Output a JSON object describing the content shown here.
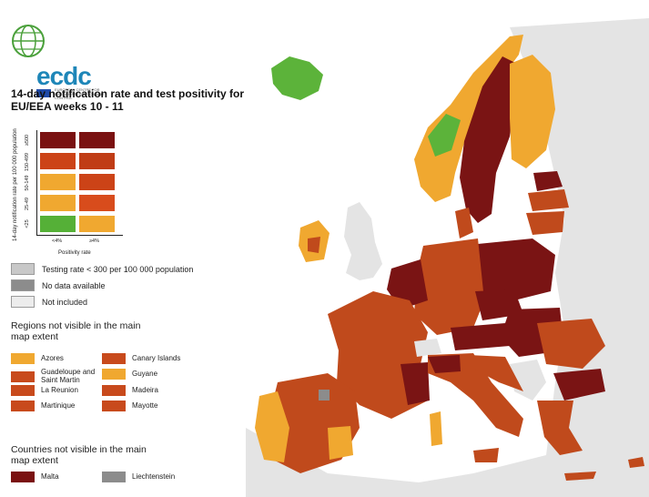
{
  "logo": {
    "wordmark": "ecdc",
    "tagline": "EUROPEAN CENTRE FOR DISEASE PREVENTION AND CONTROL"
  },
  "title": "14-day notification rate and test positivity for EU/EEA weeks 10 - 11",
  "matrix": {
    "y_axis_title": "14-day notification rate per 100 000 population",
    "y_categories": [
      "<25",
      "25-49",
      "50-149",
      "150-499",
      "≥500"
    ],
    "x_axis_title": "Positivity rate",
    "x_categories": [
      "<4%",
      "≥4%"
    ],
    "cells": [
      [
        "#55b037",
        "#f0a830"
      ],
      [
        "#f0a830",
        "#d84c1c"
      ],
      [
        "#f0a830",
        "#cc4317"
      ],
      [
        "#cc4317",
        "#c03c15"
      ],
      [
        "#7a1111",
        "#7a1111"
      ]
    ]
  },
  "status_legend": [
    {
      "label": "Testing rate < 300 per 100 000 population",
      "color": "#c8c8c8"
    },
    {
      "label": "No data available",
      "color": "#8c8c8c"
    },
    {
      "label": "Not included",
      "color": "#ececec"
    }
  ],
  "regions_title": "Regions not visible in the main map extent",
  "regions": [
    {
      "label": "Azores",
      "color": "#f0a830"
    },
    {
      "label": "Canary Islands",
      "color": "#c84a1c"
    },
    {
      "label": "Guadeloupe and Saint Martin",
      "color": "#c84a1c"
    },
    {
      "label": "Guyane",
      "color": "#f0a830"
    },
    {
      "label": "La Reunion",
      "color": "#c84a1c"
    },
    {
      "label": "Madeira",
      "color": "#c84a1c"
    },
    {
      "label": "Martinique",
      "color": "#c84a1c"
    },
    {
      "label": "Mayotte",
      "color": "#c84a1c"
    }
  ],
  "countries_title": "Countries not visible in the main map extent",
  "countries": [
    {
      "label": "Malta",
      "color": "#7a1111"
    },
    {
      "label": "Liechtenstein",
      "color": "#8c8c8c"
    }
  ],
  "map_colors": {
    "sea": "#ffffff",
    "not_included": "#e4e4e4",
    "dark_red": "#7a1414",
    "red": "#c04a1c",
    "orange": "#f0a830",
    "green": "#5cb33a",
    "grey": "#8c8c8c"
  }
}
